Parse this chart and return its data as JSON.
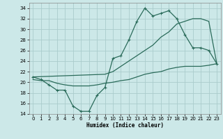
{
  "xlabel": "Humidex (Indice chaleur)",
  "bg_color": "#cce8e8",
  "grid_color": "#aacccc",
  "line_color": "#2a6b5a",
  "ylim": [
    14,
    35
  ],
  "xlim": [
    -0.5,
    23.5
  ],
  "yticks": [
    14,
    16,
    18,
    20,
    22,
    24,
    26,
    28,
    30,
    32,
    34
  ],
  "xticks": [
    0,
    1,
    2,
    3,
    4,
    5,
    6,
    7,
    8,
    9,
    10,
    11,
    12,
    13,
    14,
    15,
    16,
    17,
    18,
    19,
    20,
    21,
    22,
    23
  ],
  "line1_x": [
    0,
    1,
    2,
    3,
    4,
    5,
    6,
    7,
    8,
    9,
    10,
    11,
    12,
    13,
    14,
    15,
    16,
    17,
    18,
    19,
    20,
    21,
    22,
    23
  ],
  "line1_y": [
    21.0,
    20.5,
    19.5,
    18.5,
    18.5,
    15.5,
    14.5,
    14.5,
    17.5,
    19.0,
    24.5,
    25.0,
    28.0,
    31.5,
    34.0,
    32.5,
    33.0,
    33.5,
    32.0,
    29.0,
    26.5,
    26.5,
    26.0,
    23.5
  ],
  "line2_x": [
    0,
    9,
    10,
    11,
    12,
    13,
    14,
    15,
    16,
    17,
    18,
    19,
    20,
    21,
    22,
    23
  ],
  "line2_y": [
    21.0,
    21.5,
    22.0,
    23.0,
    24.0,
    25.0,
    26.0,
    27.0,
    28.5,
    29.5,
    31.0,
    31.5,
    32.0,
    32.0,
    31.5,
    23.5
  ],
  "line3_x": [
    0,
    1,
    2,
    3,
    4,
    5,
    6,
    7,
    8,
    9,
    10,
    11,
    12,
    13,
    14,
    15,
    16,
    17,
    18,
    19,
    20,
    21,
    22,
    23
  ],
  "line3_y": [
    20.5,
    20.3,
    20.3,
    19.8,
    19.5,
    19.3,
    19.3,
    19.3,
    19.5,
    19.8,
    20.0,
    20.3,
    20.5,
    21.0,
    21.5,
    21.8,
    22.0,
    22.5,
    22.8,
    23.0,
    23.0,
    23.0,
    23.2,
    23.5
  ]
}
